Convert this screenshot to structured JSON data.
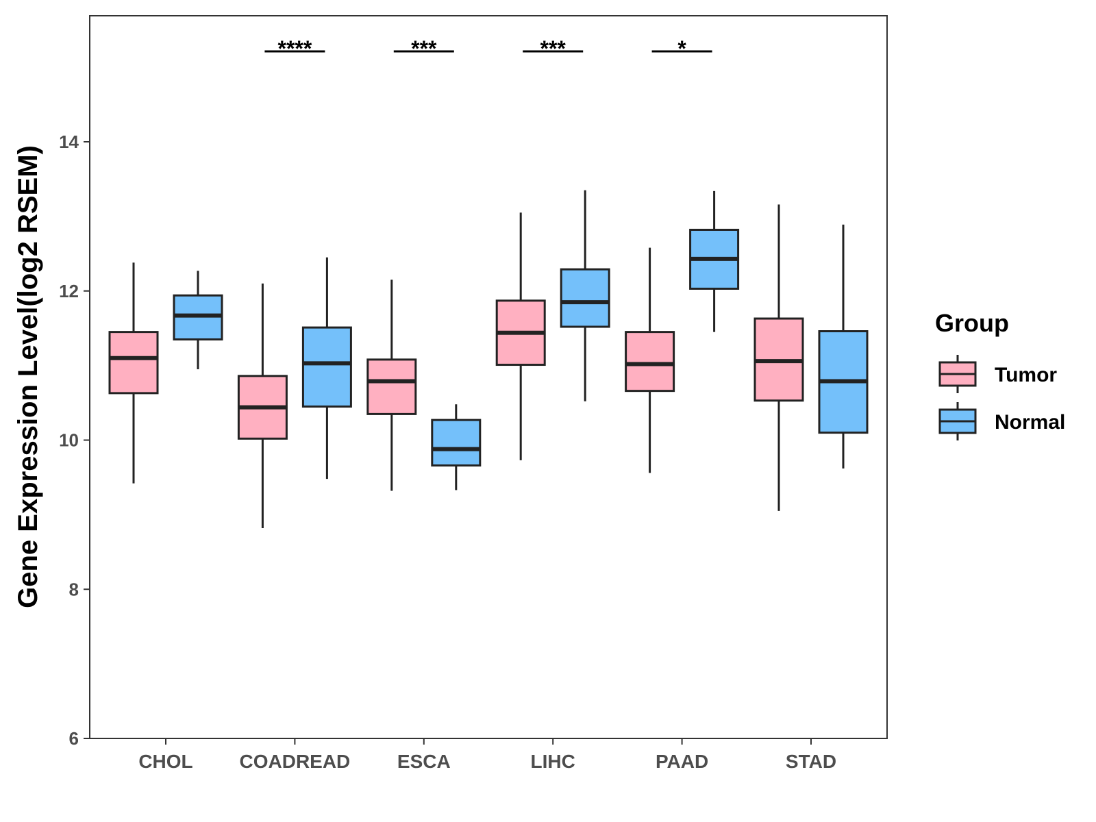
{
  "chart_data": {
    "type": "boxplot",
    "ylabel": "Gene Expression Level(log2 RSEM)",
    "xlabel": "",
    "ylim": [
      6,
      15.8
    ],
    "yticks": [
      6,
      8,
      10,
      12,
      14
    ],
    "categories": [
      "CHOL",
      "COADREAD",
      "ESCA",
      "LIHC",
      "PAAD",
      "STAD"
    ],
    "legend": {
      "title": "Group",
      "position": "right",
      "entries": [
        "Tumor",
        "Normal"
      ]
    },
    "series": [
      {
        "name": "Tumor",
        "color": "#FFB0C1",
        "boxes": [
          {
            "low": 9.42,
            "q1": 10.63,
            "median": 11.1,
            "q3": 11.45,
            "high": 12.38
          },
          {
            "low": 8.82,
            "q1": 10.02,
            "median": 10.44,
            "q3": 10.86,
            "high": 12.1
          },
          {
            "low": 9.32,
            "q1": 10.35,
            "median": 10.79,
            "q3": 11.08,
            "high": 12.15
          },
          {
            "low": 9.73,
            "q1": 11.01,
            "median": 11.44,
            "q3": 11.87,
            "high": 13.05
          },
          {
            "low": 9.56,
            "q1": 10.66,
            "median": 11.02,
            "q3": 11.45,
            "high": 12.58
          },
          {
            "low": 9.05,
            "q1": 10.53,
            "median": 11.06,
            "q3": 11.63,
            "high": 13.16
          }
        ]
      },
      {
        "name": "Normal",
        "color": "#74C0FA",
        "boxes": [
          {
            "low": 10.95,
            "q1": 11.35,
            "median": 11.67,
            "q3": 11.94,
            "high": 12.27
          },
          {
            "low": 9.48,
            "q1": 10.45,
            "median": 11.03,
            "q3": 11.51,
            "high": 12.45
          },
          {
            "low": 9.33,
            "q1": 9.66,
            "median": 9.88,
            "q3": 10.27,
            "high": 10.48
          },
          {
            "low": 10.52,
            "q1": 11.52,
            "median": 11.85,
            "q3": 12.29,
            "high": 13.35
          },
          {
            "low": 11.45,
            "q1": 12.03,
            "median": 12.43,
            "q3": 12.82,
            "high": 13.34
          },
          {
            "low": 9.62,
            "q1": 10.1,
            "median": 10.79,
            "q3": 11.46,
            "high": 12.89
          }
        ]
      }
    ],
    "significance": [
      {
        "category": "COADREAD",
        "label": "****"
      },
      {
        "category": "ESCA",
        "label": "***"
      },
      {
        "category": "LIHC",
        "label": "***"
      },
      {
        "category": "PAAD",
        "label": "*"
      }
    ],
    "grid": false
  }
}
